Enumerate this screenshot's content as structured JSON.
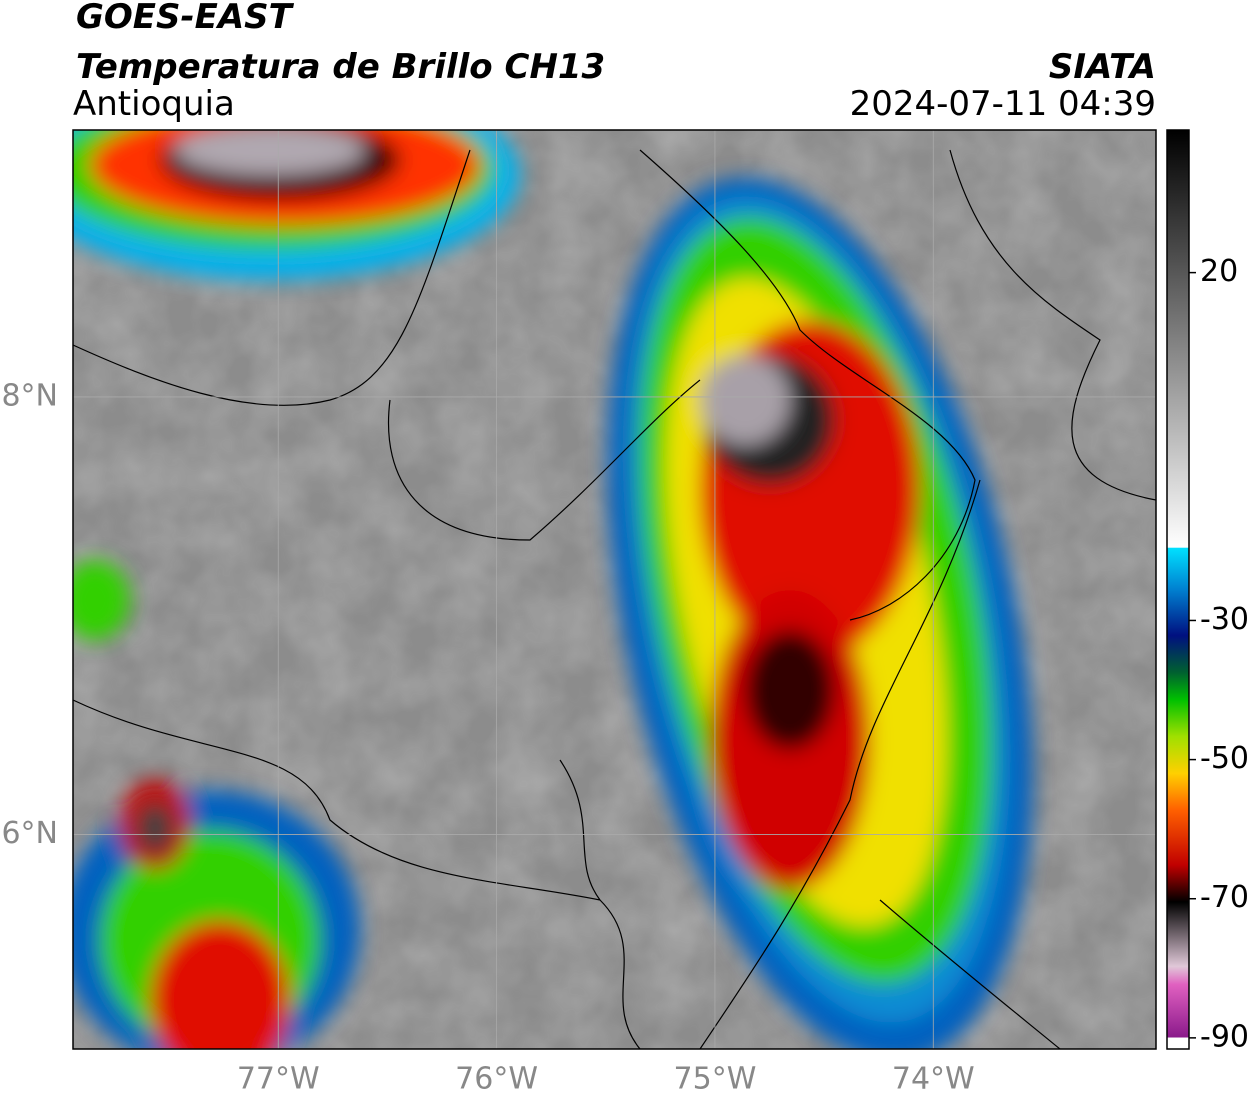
{
  "header": {
    "satellite": "GOES-EAST",
    "product": "Temperatura de Brillo CH13",
    "region": "Antioquia",
    "source": "SIATA",
    "datetime": "2024-07-11 04:39"
  },
  "map": {
    "xlim": [
      -77.94,
      -72.98
    ],
    "ylim": [
      5.02,
      9.22
    ],
    "lon_ticks": [
      {
        "value": -77,
        "label": "77°W"
      },
      {
        "value": -76,
        "label": "76°W"
      },
      {
        "value": -75,
        "label": "75°W"
      },
      {
        "value": -74,
        "label": "74°W"
      }
    ],
    "lat_ticks": [
      {
        "value": 8,
        "label": "8°N"
      },
      {
        "value": 6,
        "label": "6°N"
      }
    ]
  },
  "colorbar": {
    "lim": [
      -91.6,
      40.5
    ],
    "ticks": [
      20,
      -30,
      -50,
      -70,
      -90
    ]
  }
}
